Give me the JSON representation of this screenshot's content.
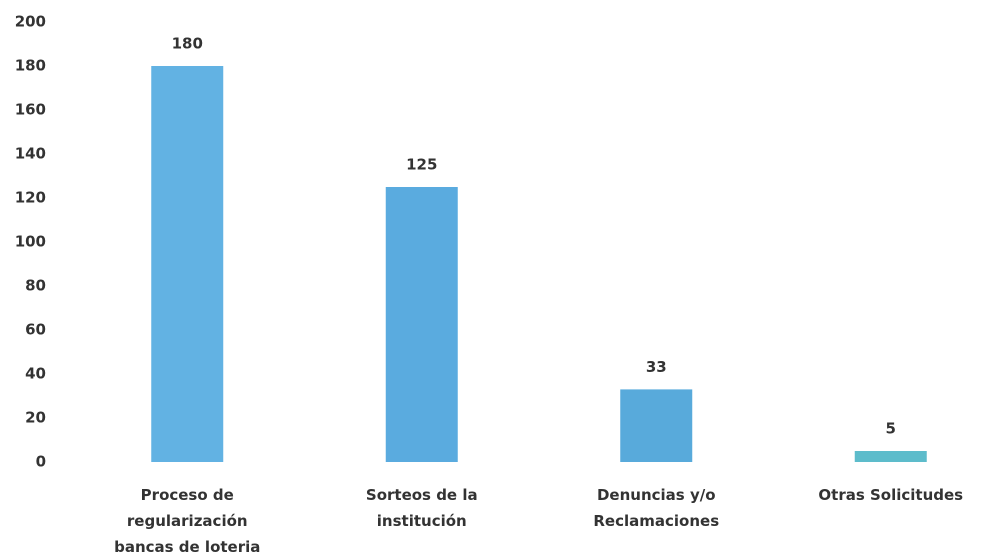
{
  "chart_data": {
    "type": "bar",
    "categories": [
      "Proceso de regularización bancas de loteria",
      "Sorteos de la institución",
      "Denuncias y/o Reclamaciones",
      "Otras Solicitudes"
    ],
    "values": [
      180,
      125,
      33,
      5
    ],
    "colors": [
      "#62b2e3",
      "#5aabdf",
      "#58aadb",
      "#5dbccb"
    ],
    "ylim": [
      0,
      200
    ],
    "yticks": [
      0,
      20,
      40,
      60,
      80,
      100,
      120,
      140,
      160,
      180,
      200
    ],
    "grid": false
  }
}
